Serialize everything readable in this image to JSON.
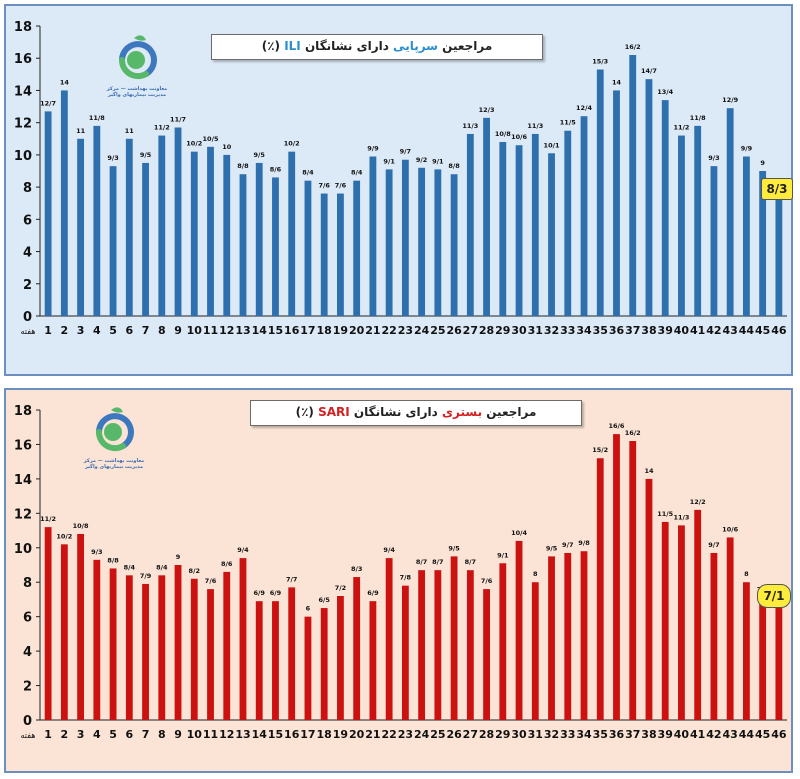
{
  "chart_data": [
    {
      "type": "bar",
      "title_parts": [
        "مراجعین ",
        "سرپایی",
        " دارای نشانگان ",
        "ILI",
        " (٪)"
      ],
      "week_axis_label": "هفته",
      "logo_text": "معاونت بهداشت — مرکز مدیریت بیماریهای واگیر",
      "final_label": "8/3",
      "bar_color": "#2e6fae",
      "accent_color": "#2a8fd0",
      "ylim": [
        0,
        18
      ],
      "yticks": [
        0,
        2,
        4,
        6,
        8,
        10,
        12,
        14,
        16,
        18
      ],
      "categories": [
        "1",
        "2",
        "3",
        "4",
        "5",
        "6",
        "7",
        "8",
        "9",
        "10",
        "11",
        "12",
        "13",
        "14",
        "15",
        "16",
        "17",
        "18",
        "19",
        "20",
        "21",
        "22",
        "23",
        "24",
        "25",
        "26",
        "27",
        "28",
        "29",
        "30",
        "31",
        "32",
        "33",
        "34",
        "35",
        "36",
        "37",
        "38",
        "39",
        "40",
        "41",
        "42",
        "43",
        "44",
        "45",
        "46"
      ],
      "values": [
        12.7,
        14,
        11,
        11.8,
        9.3,
        11,
        9.5,
        11.2,
        11.7,
        10.2,
        10.5,
        10,
        8.8,
        9.5,
        8.6,
        10.2,
        8.4,
        7.6,
        7.6,
        8.4,
        9.9,
        9.1,
        9.7,
        9.2,
        9.1,
        8.8,
        11.3,
        12.3,
        10.8,
        10.6,
        11.3,
        10.1,
        11.5,
        12.4,
        15.3,
        14,
        16.2,
        14.7,
        13.4,
        11.2,
        11.8,
        9.3,
        12.9,
        9.9,
        9,
        8.3
      ],
      "labels": [
        "12/7",
        "14",
        "11",
        "11/8",
        "9/3",
        "11",
        "9/5",
        "11/2",
        "11/7",
        "10/2",
        "10/5",
        "10",
        "8/8",
        "9/5",
        "8/6",
        "10/2",
        "8/4",
        "7/6",
        "7/6",
        "8/4",
        "9/9",
        "9/1",
        "9/7",
        "9/2",
        "9/1",
        "8/8",
        "11/3",
        "12/3",
        "10/8",
        "10/6",
        "11/3",
        "10/1",
        "11/5",
        "12/4",
        "15/3",
        "14",
        "16/2",
        "14/7",
        "13/4",
        "11/2",
        "11/8",
        "9/3",
        "12/9",
        "9/9",
        "9",
        ""
      ]
    },
    {
      "type": "bar",
      "title_parts": [
        "مراجعین ",
        "بستری",
        " دارای نشانگان ",
        "SARI",
        " (٪)"
      ],
      "week_axis_label": "هفته",
      "logo_text": "معاونت بهداشت — مرکز مدیریت بیماریهای واگیر",
      "final_label": "7/1",
      "bar_color": "#cc1111",
      "accent_color": "#d42020",
      "ylim": [
        0,
        18
      ],
      "yticks": [
        0,
        2,
        4,
        6,
        8,
        10,
        12,
        14,
        16,
        18
      ],
      "categories": [
        "1",
        "2",
        "3",
        "4",
        "5",
        "6",
        "7",
        "8",
        "9",
        "10",
        "11",
        "12",
        "13",
        "14",
        "15",
        "16",
        "17",
        "18",
        "19",
        "20",
        "21",
        "22",
        "23",
        "24",
        "25",
        "26",
        "27",
        "28",
        "29",
        "30",
        "31",
        "32",
        "33",
        "34",
        "35",
        "36",
        "37",
        "38",
        "39",
        "40",
        "41",
        "42",
        "43",
        "44",
        "45",
        "46"
      ],
      "values": [
        11.2,
        10.2,
        10.8,
        9.3,
        8.8,
        8.4,
        7.9,
        8.4,
        9,
        8.2,
        7.6,
        8.6,
        9.4,
        6.9,
        6.9,
        7.7,
        6,
        6.5,
        7.2,
        8.3,
        6.9,
        9.4,
        7.8,
        8.7,
        8.7,
        9.5,
        8.7,
        7.6,
        9.1,
        10.4,
        8,
        9.5,
        9.7,
        9.8,
        15.2,
        16.6,
        16.2,
        14,
        11.5,
        11.3,
        12.2,
        9.7,
        10.6,
        8,
        7.1,
        7.1
      ],
      "labels": [
        "11/2",
        "10/2",
        "10/8",
        "9/3",
        "8/8",
        "8/4",
        "7/9",
        "8/4",
        "9",
        "8/2",
        "7/6",
        "8/6",
        "9/4",
        "6/9",
        "6/9",
        "7/7",
        "6",
        "6/5",
        "7/2",
        "8/3",
        "6/9",
        "9/4",
        "7/8",
        "8/7",
        "8/7",
        "9/5",
        "8/7",
        "7/6",
        "9/1",
        "10/4",
        "8",
        "9/5",
        "9/7",
        "9/8",
        "15/2",
        "16/6",
        "16/2",
        "14",
        "11/5",
        "11/3",
        "12/2",
        "9/7",
        "10/6",
        "8",
        "7/1",
        ""
      ]
    }
  ]
}
